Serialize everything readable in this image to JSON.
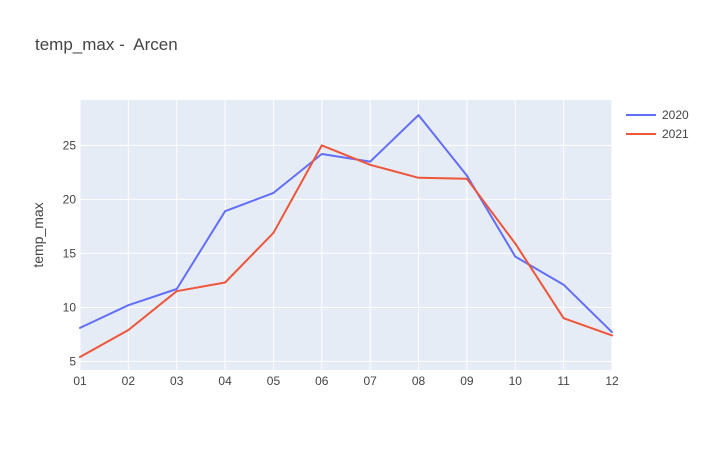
{
  "chart_data": {
    "type": "line",
    "title": "temp_max -  Arcen",
    "xlabel": "",
    "ylabel": "temp_max",
    "categories": [
      "01",
      "02",
      "03",
      "04",
      "05",
      "06",
      "07",
      "08",
      "09",
      "10",
      "11",
      "12"
    ],
    "yticks": [
      5,
      10,
      15,
      20,
      25
    ],
    "ylim": [
      4.2,
      29.2
    ],
    "grid": true,
    "legend_position": "top-right",
    "series": [
      {
        "name": "2020",
        "color": "#636efa",
        "values": [
          8.1,
          10.2,
          11.7,
          18.9,
          20.6,
          24.2,
          23.5,
          27.8,
          22.2,
          14.7,
          12.1,
          7.7
        ]
      },
      {
        "name": "2021",
        "color": "#ef553b",
        "values": [
          5.4,
          7.9,
          11.5,
          12.3,
          16.9,
          25.0,
          23.2,
          22.0,
          21.9,
          15.9,
          9.0,
          7.4
        ]
      }
    ]
  }
}
